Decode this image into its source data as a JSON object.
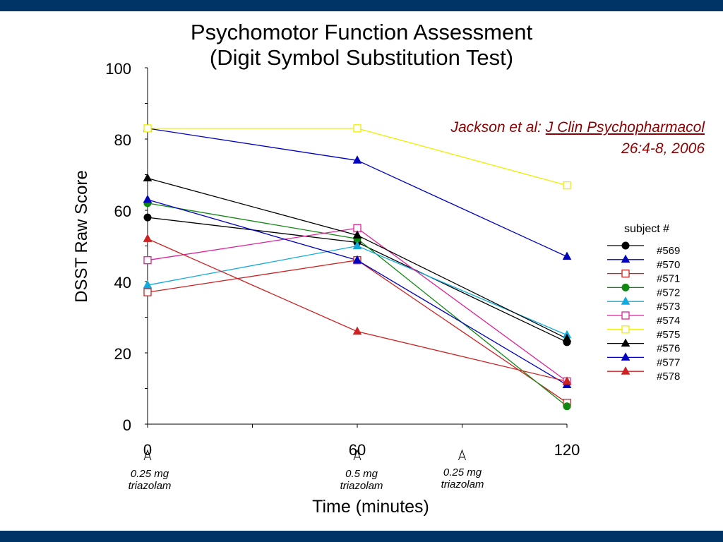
{
  "title": {
    "line1": "Psychomotor Function Assessment",
    "line2": "(Digit Symbol Substitution Test)"
  },
  "citation": {
    "authors": "Jackson et al: ",
    "journal": "J Clin Psychopharmacol",
    "volume": "26:4-8, 2006"
  },
  "doses": [
    {
      "amount": "0.25 mg",
      "drug": "triazolam",
      "time": 0
    },
    {
      "amount": "0.5 mg",
      "drug": "triazolam",
      "time": 60
    },
    {
      "amount": "0.25 mg",
      "drug": "triazolam",
      "time": 90
    }
  ],
  "chart_data": {
    "type": "line",
    "title": "Psychomotor Function Assessment (Digit Symbol Substitution Test)",
    "xlabel": "Time (minutes)",
    "ylabel": "DSST Raw Score",
    "x": [
      0,
      60,
      120
    ],
    "x_ticks": [
      "0",
      "60",
      "120"
    ],
    "y_ticks": [
      "0",
      "20",
      "40",
      "60",
      "80",
      "100"
    ],
    "xlim": [
      0,
      120
    ],
    "ylim": [
      0,
      100
    ],
    "grid": false,
    "legend_title": "subject #",
    "legend_position": "right",
    "series": [
      {
        "name": "#569",
        "color": "#000000",
        "marker": "circle",
        "values": [
          58,
          51,
          23
        ]
      },
      {
        "name": "#570",
        "color": "#0000c0",
        "marker": "triangle",
        "values": [
          83,
          74,
          47
        ]
      },
      {
        "name": "#571",
        "color": "#cc2222",
        "marker": "square",
        "values": [
          37,
          46,
          6
        ]
      },
      {
        "name": "#572",
        "color": "#118811",
        "marker": "circle",
        "values": [
          62,
          52,
          5
        ]
      },
      {
        "name": "#573",
        "color": "#11aadd",
        "marker": "triangle",
        "values": [
          39,
          50,
          25
        ]
      },
      {
        "name": "#574",
        "color": "#dd2299",
        "marker": "square",
        "values": [
          46,
          55,
          12
        ]
      },
      {
        "name": "#575",
        "color": "#eeee00",
        "marker": "square",
        "values": [
          83,
          83,
          67
        ]
      },
      {
        "name": "#576",
        "color": "#000000",
        "marker": "triangle",
        "values": [
          69,
          53,
          24
        ]
      },
      {
        "name": "#577",
        "color": "#0000c0",
        "marker": "triangle",
        "values": [
          63,
          46,
          11
        ]
      },
      {
        "name": "#578",
        "color": "#cc2222",
        "marker": "triangle",
        "values": [
          52,
          26,
          12
        ]
      }
    ]
  }
}
